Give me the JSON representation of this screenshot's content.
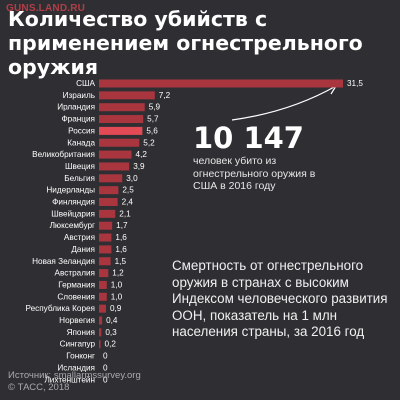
{
  "watermark": "GUNS.LAND.RU",
  "title": "Количество убийств с применением огнестрельного оружия",
  "highlight": {
    "number": "10 147",
    "caption": "человек убито из огнестрельного оружия в США в 2016 году"
  },
  "note": "Смертность от огнестрельного оружия в странах с высоким Индексом человеческого развития ООН, показатель на 1 млн населения страны, за 2016 год",
  "footer": {
    "source": "Источник: smallarmssurvey.org",
    "copyright": "© ТАСС, 2018"
  },
  "colors": {
    "background": "#2f2f33",
    "bar": "#a9363f",
    "bar_highlight": "#e24a55",
    "text": "#ffffff"
  },
  "chart_data": {
    "type": "bar",
    "orientation": "horizontal",
    "categories": [
      "США",
      "Израиль",
      "Ирландия",
      "Франция",
      "Россия",
      "Канада",
      "Великобритания",
      "Швеция",
      "Бельгия",
      "Нидерланды",
      "Финляндия",
      "Швейцария",
      "Люксембург",
      "Австрия",
      "Дания",
      "Новая Зеландия",
      "Австралия",
      "Германия",
      "Словения",
      "Республика Корея",
      "Норвегия",
      "Япония",
      "Сингапур",
      "Гонконг",
      "Исландия",
      "Лихтенштейн"
    ],
    "values": [
      31.5,
      7.2,
      5.9,
      5.7,
      5.6,
      5.2,
      4.2,
      3.9,
      3.0,
      2.5,
      2.4,
      2.1,
      1.7,
      1.6,
      1.6,
      1.5,
      1.2,
      1.0,
      1.0,
      0.9,
      0.4,
      0.3,
      0.2,
      0,
      0,
      0
    ],
    "value_labels": [
      "31,5",
      "7,2",
      "5,9",
      "5,7",
      "5,6",
      "5,2",
      "4,2",
      "3,9",
      "3,0",
      "2,5",
      "2,4",
      "2,1",
      "1,7",
      "1,6",
      "1,6",
      "1,5",
      "1,2",
      "1,0",
      "1,0",
      "0,9",
      "0,4",
      "0,3",
      "0,2",
      "0",
      "0",
      "0"
    ],
    "highlighted_category": "Россия",
    "xlim": [
      0,
      31.5
    ],
    "grid": false,
    "legend": "none"
  }
}
